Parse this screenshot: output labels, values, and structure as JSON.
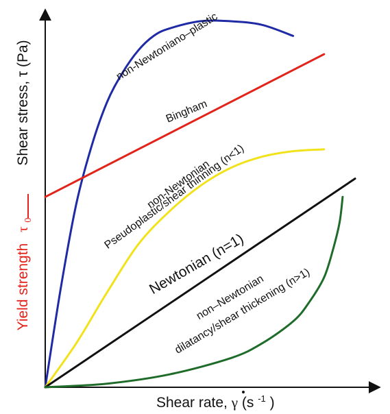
{
  "chart_data": {
    "type": "line",
    "title": "",
    "xlabel": "Shear rate, γ̇ (s⁻¹)",
    "xlabel_main": "Shear rate, ",
    "xlabel_symbol": "γ",
    "xlabel_unit_open": " (s",
    "xlabel_unit_exp": "-1",
    "xlabel_unit_close": ")",
    "ylabel": "Shear stress, τ (Pa)",
    "yield_label": "Yield strength",
    "yield_symbol": "τ",
    "yield_subscript": "0",
    "xlim": [
      0,
      1
    ],
    "ylim": [
      0,
      1
    ],
    "grid": false,
    "legend": "none",
    "series": [
      {
        "name": "non-Newtoniano–plastic",
        "label_lines": [
          "non-Newtoniano–plastic"
        ],
        "color": "#1f2aa5",
        "x": [
          0,
          0.05,
          0.1,
          0.15,
          0.2,
          0.25,
          0.3,
          0.35,
          0.4,
          0.5,
          0.6,
          0.7,
          0.8
        ],
        "y": [
          0,
          0.27,
          0.5,
          0.66,
          0.78,
          0.86,
          0.92,
          0.96,
          0.98,
          1.0,
          1.0,
          0.99,
          0.96
        ]
      },
      {
        "name": "Bingham",
        "label_lines": [
          "Bingham"
        ],
        "color": "#e2231a",
        "x": [
          0,
          0.9
        ],
        "y": [
          0.52,
          0.91
        ]
      },
      {
        "name": "non-Newtonian Pseudoplastic/shear thinning (n<1)",
        "label_lines": [
          "non-Newtonian",
          "Pseudoplastic/shear thinning (n<1)"
        ],
        "color": "#f2e21c",
        "x": [
          0,
          0.1,
          0.2,
          0.3,
          0.4,
          0.5,
          0.6,
          0.7,
          0.8,
          0.9
        ],
        "y": [
          0,
          0.12,
          0.26,
          0.39,
          0.48,
          0.55,
          0.6,
          0.63,
          0.645,
          0.65
        ]
      },
      {
        "name": "Newtonian (n=1)",
        "label_lines": [
          "Newtonian (n=1)"
        ],
        "color": "#111111",
        "x": [
          0,
          1.0
        ],
        "y": [
          0,
          0.57
        ]
      },
      {
        "name": "non–Newtonian dilatancy/shear thickening (n>1)",
        "label_lines": [
          "non–Newtonian",
          "dilatancy/shear thickening (n>1)"
        ],
        "color": "#1f6b2a",
        "x": [
          0,
          0.2,
          0.4,
          0.6,
          0.7,
          0.8,
          0.85,
          0.9,
          0.93,
          0.95,
          0.96
        ],
        "y": [
          0,
          0.01,
          0.035,
          0.08,
          0.12,
          0.18,
          0.23,
          0.3,
          0.38,
          0.45,
          0.52
        ]
      }
    ]
  }
}
